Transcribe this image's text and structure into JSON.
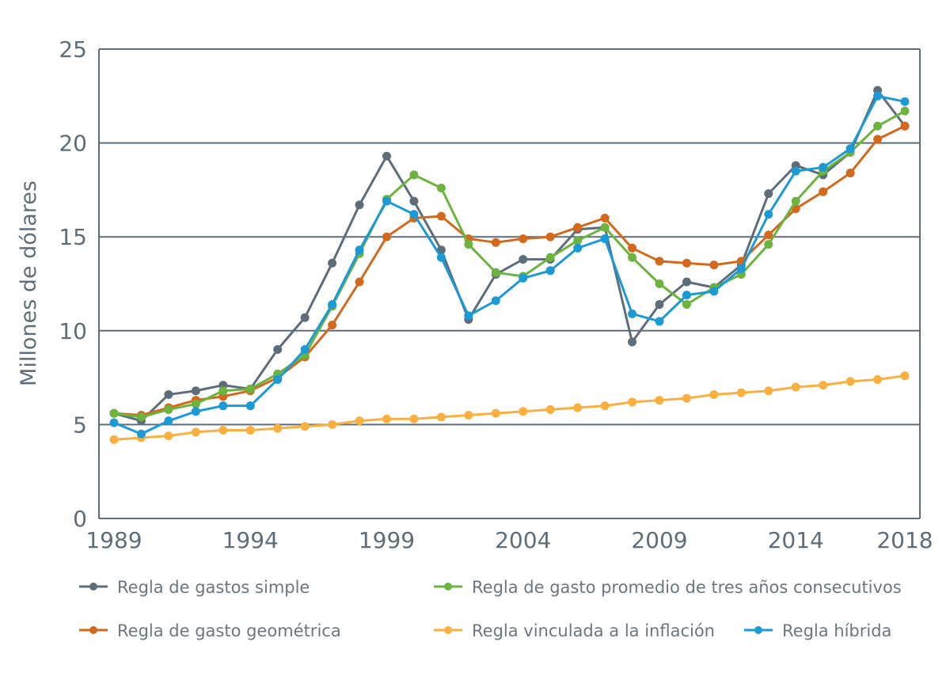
{
  "chart_data": {
    "type": "line",
    "title": "",
    "xlabel": "",
    "ylabel": "Millones de dólares",
    "ylim": [
      0,
      25
    ],
    "xlim": [
      1989,
      2018
    ],
    "yticks": [
      0,
      5,
      10,
      15,
      20,
      25
    ],
    "xticks": [
      1989,
      1994,
      1999,
      2004,
      2009,
      2014,
      2018
    ],
    "grid": true,
    "legend_position": "bottom",
    "x": [
      1989,
      1990,
      1991,
      1992,
      1993,
      1994,
      1995,
      1996,
      1997,
      1998,
      1999,
      2000,
      2001,
      2002,
      2003,
      2004,
      2005,
      2006,
      2007,
      2008,
      2009,
      2010,
      2011,
      2012,
      2013,
      2014,
      2015,
      2016,
      2017,
      2018
    ],
    "series": [
      {
        "name": "Regla de gastos simple",
        "color": "#5d6d7a",
        "values": [
          5.6,
          5.2,
          6.6,
          6.8,
          7.1,
          6.9,
          9.0,
          10.7,
          13.6,
          16.7,
          19.3,
          16.9,
          14.3,
          10.6,
          13.0,
          13.8,
          13.8,
          15.4,
          15.5,
          9.4,
          11.4,
          12.6,
          12.3,
          13.5,
          17.3,
          18.8,
          18.3,
          19.5,
          22.8,
          20.9
        ]
      },
      {
        "name": "Regla de gasto promedio de tres años consecutivos",
        "color": "#6cb33f",
        "values": [
          5.6,
          5.4,
          5.8,
          6.1,
          6.8,
          6.9,
          7.7,
          8.7,
          11.3,
          14.1,
          17.0,
          18.3,
          17.6,
          14.6,
          13.1,
          12.9,
          13.9,
          14.8,
          15.5,
          13.9,
          12.5,
          11.4,
          12.3,
          13.0,
          14.6,
          16.9,
          18.5,
          19.5,
          20.9,
          21.7
        ]
      },
      {
        "name": "Regla de gasto geométrica",
        "color": "#d2691c",
        "values": [
          5.6,
          5.5,
          5.9,
          6.3,
          6.5,
          6.8,
          7.5,
          8.6,
          10.3,
          12.6,
          15.0,
          16.0,
          16.1,
          14.9,
          14.7,
          14.9,
          15.0,
          15.5,
          16.0,
          14.4,
          13.7,
          13.6,
          13.5,
          13.7,
          15.1,
          16.5,
          17.4,
          18.4,
          20.2,
          20.9
        ]
      },
      {
        "name": "Regla vinculada a la inflación",
        "color": "#f9b041",
        "values": [
          4.2,
          4.3,
          4.4,
          4.6,
          4.7,
          4.7,
          4.8,
          4.9,
          5.0,
          5.2,
          5.3,
          5.3,
          5.4,
          5.5,
          5.6,
          5.7,
          5.8,
          5.9,
          6.0,
          6.2,
          6.3,
          6.4,
          6.6,
          6.7,
          6.8,
          7.0,
          7.1,
          7.3,
          7.4,
          7.6
        ]
      },
      {
        "name": "Regla híbrida",
        "color": "#1b9ad6",
        "values": [
          5.1,
          4.5,
          5.2,
          5.7,
          6.0,
          6.0,
          7.4,
          9.0,
          11.4,
          14.3,
          16.9,
          16.2,
          13.9,
          10.8,
          11.6,
          12.8,
          13.2,
          14.4,
          14.9,
          10.9,
          10.5,
          11.9,
          12.1,
          13.3,
          16.2,
          18.5,
          18.7,
          19.7,
          22.5,
          22.2
        ]
      }
    ]
  }
}
